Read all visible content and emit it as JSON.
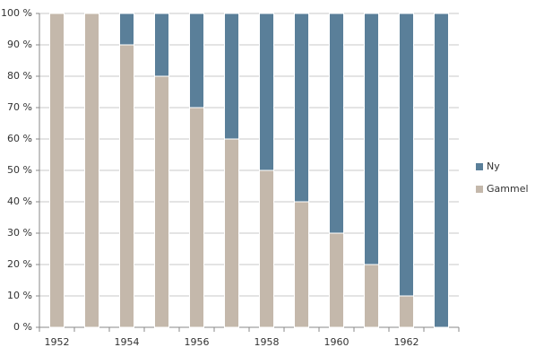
{
  "chart_data": {
    "type": "stacked-bar-100",
    "categories": [
      "1952",
      null,
      "1954",
      null,
      "1956",
      null,
      "1958",
      null,
      "1960",
      null,
      "1962",
      null
    ],
    "series": [
      {
        "name": "Gammel",
        "color": "#c4b8ab",
        "values": [
          100,
          100,
          90,
          80,
          70,
          60,
          50,
          40,
          30,
          20,
          10,
          0
        ]
      },
      {
        "name": "Ny",
        "color": "#5a7f99",
        "values": [
          0,
          0,
          10,
          20,
          30,
          40,
          50,
          60,
          70,
          80,
          90,
          100
        ]
      }
    ],
    "ylim": [
      0,
      100
    ],
    "yticks": [
      {
        "value": 0,
        "label": "0 %"
      },
      {
        "value": 10,
        "label": "10 %"
      },
      {
        "value": 20,
        "label": "20 %"
      },
      {
        "value": 30,
        "label": "30 %"
      },
      {
        "value": 40,
        "label": "40 %"
      },
      {
        "value": 50,
        "label": "50 %"
      },
      {
        "value": 60,
        "label": "60 %"
      },
      {
        "value": 70,
        "label": "70 %"
      },
      {
        "value": 80,
        "label": "80 %"
      },
      {
        "value": 90,
        "label": "90 %"
      },
      {
        "value": 100,
        "label": "100 %"
      }
    ],
    "grid": true,
    "legend": "right"
  }
}
